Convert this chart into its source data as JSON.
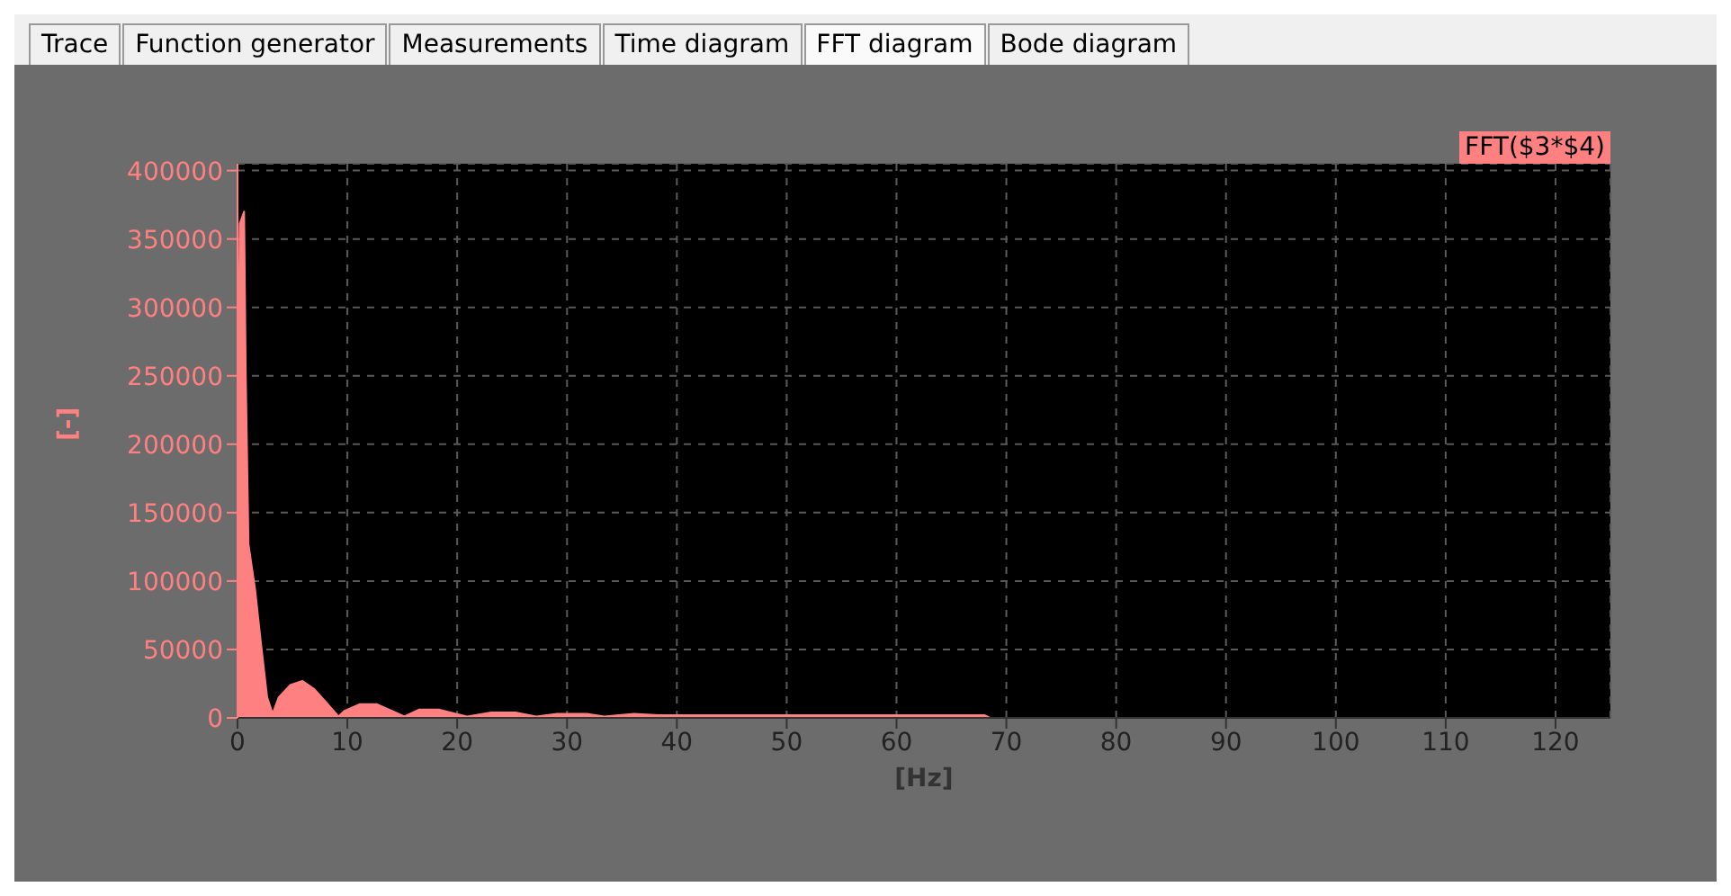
{
  "chart_data": {
    "type": "area",
    "xlabel": "[Hz]",
    "ylabel": "[-]",
    "annotations": [
      "Trace",
      "Function generator",
      "Measurements",
      "Time diagram",
      "FFT diagram",
      "Bode diagram"
    ],
    "series": [
      {
        "name": "FFT($3*$4)",
        "color": "#ff8080",
        "x": [
          0,
          0.2,
          0.6,
          0.75,
          1.0,
          1.6,
          2.1,
          2.7,
          3.2,
          3.75,
          4.8,
          5.9,
          7.0,
          8.1,
          9.2,
          9.7,
          11.1,
          12.7,
          14.1,
          15.2,
          16.5,
          18.4,
          20.9,
          23.1,
          25.3,
          27.2,
          29.1,
          31.8,
          33.4,
          36.1,
          38.3,
          42,
          48,
          55,
          62,
          68,
          68.5,
          125
        ],
        "values": [
          170000,
          361000,
          370000,
          251000,
          127000,
          94000,
          57000,
          15000,
          3000,
          15000,
          24000,
          27000,
          21000,
          11000,
          1000,
          5000,
          10000,
          10000,
          5000,
          1000,
          6000,
          6000,
          1000,
          4000,
          4000,
          1000,
          3000,
          3000,
          1000,
          3000,
          2000,
          2000,
          2000,
          2000,
          2000,
          2000,
          0,
          0
        ]
      }
    ],
    "xlim": [
      0,
      125
    ],
    "xticks": [
      0,
      10,
      20,
      30,
      40,
      50,
      60,
      70,
      80,
      90,
      100,
      110,
      120
    ],
    "ylim": [
      0,
      405000
    ],
    "yticks": [
      0,
      50000,
      100000,
      150000,
      200000,
      250000,
      300000,
      350000,
      400000
    ],
    "grid": true,
    "legend": "top right"
  }
}
